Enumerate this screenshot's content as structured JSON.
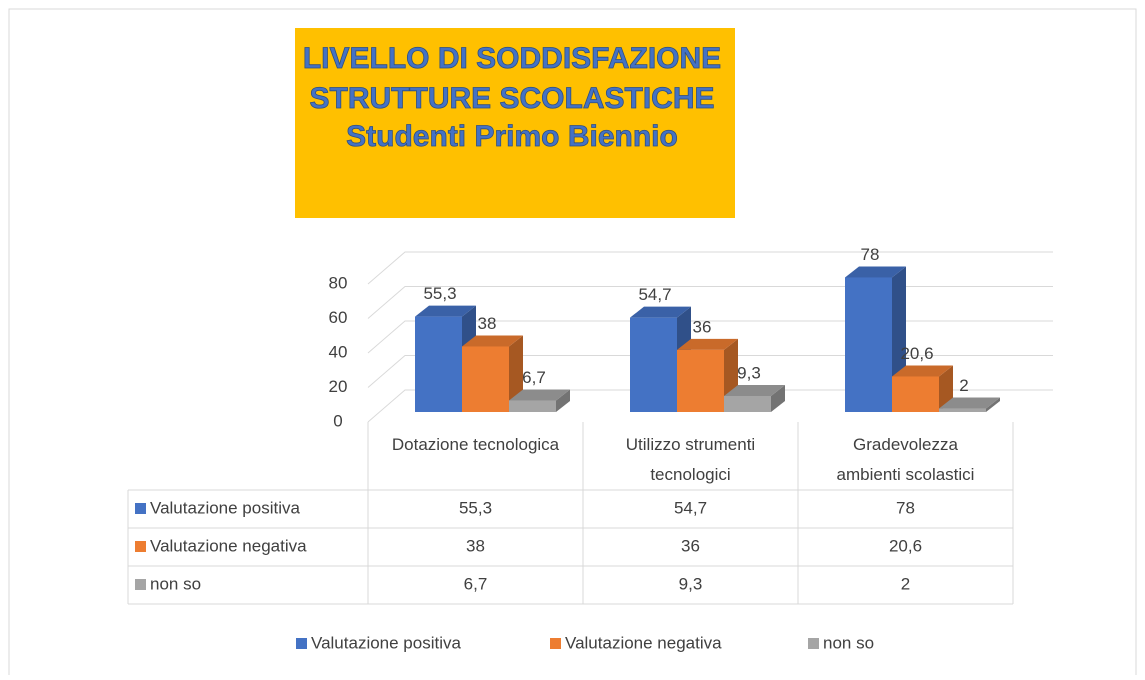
{
  "chart_data": {
    "type": "bar3d",
    "title": [
      "LIVELLO DI SODDISFAZIONE",
      "STRUTTURE SCOLASTICHE",
      "Studenti Primo Biennio"
    ],
    "categories": [
      "Dotazione tecnologica",
      "Utilizzo strumenti tecnologici",
      "Gradevolezza ambienti scolastici"
    ],
    "series": [
      {
        "name": "Valutazione positiva",
        "color": "#4472c4",
        "values": [
          55.3,
          54.7,
          78
        ],
        "value_labels": [
          "55,3",
          "54,7",
          "78"
        ]
      },
      {
        "name": "Valutazione negativa",
        "color": "#ed7d31",
        "values": [
          38,
          36,
          20.6
        ],
        "value_labels": [
          "38",
          "36",
          "20,6"
        ]
      },
      {
        "name": "non so",
        "color": "#a5a5a5",
        "values": [
          6.7,
          9.3,
          2
        ],
        "value_labels": [
          "6,7",
          "9,3",
          "2"
        ]
      }
    ],
    "ylim": [
      0,
      80
    ],
    "yticks": [
      0,
      20,
      40,
      60,
      80
    ],
    "grid": true,
    "data_table": true,
    "legend": "bottom"
  }
}
